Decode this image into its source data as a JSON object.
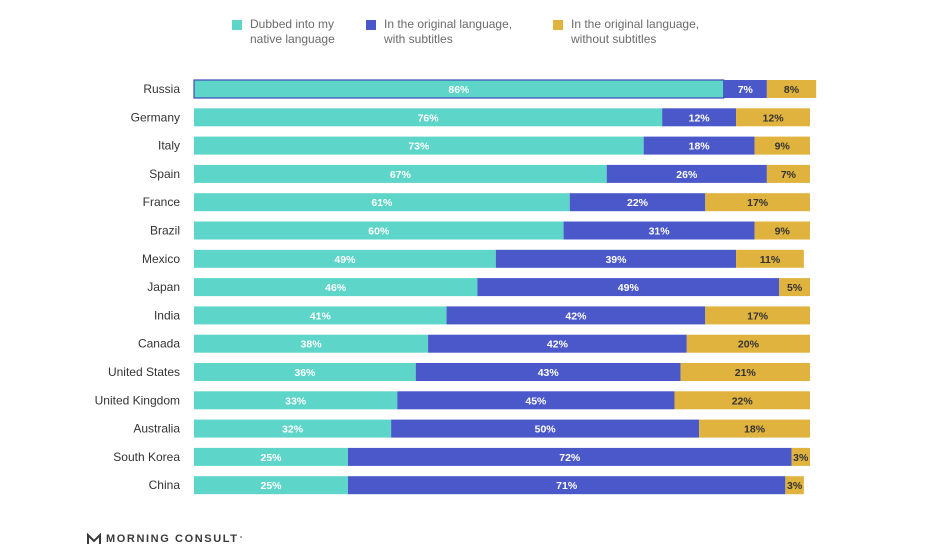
{
  "legend": {
    "dubbed_line1": "Dubbed into my",
    "dubbed_line2": "native language",
    "subtitles_line1": "In the original language,",
    "subtitles_line2": "with subtitles",
    "nosubs_line1": "In the original language,",
    "nosubs_line2": "without subtitles"
  },
  "brand": {
    "name": "MORNING CONSULT",
    "tm": "°"
  },
  "colors": {
    "dubbed": "#5dd5c8",
    "subtitles": "#4a58c9",
    "nosubs": "#e0b23e",
    "label": "#ffffff",
    "label_dark": "#333333"
  },
  "chart_data": {
    "type": "bar",
    "orientation": "horizontal",
    "stacked": true,
    "categories": [
      "Russia",
      "Germany",
      "Italy",
      "Spain",
      "France",
      "Brazil",
      "Mexico",
      "Japan",
      "India",
      "Canada",
      "United States",
      "United Kingdom",
      "Australia",
      "South Korea",
      "China"
    ],
    "series": [
      {
        "name": "Dubbed into my native language",
        "values": [
          86,
          76,
          73,
          67,
          61,
          60,
          49,
          46,
          41,
          38,
          36,
          33,
          32,
          25,
          25
        ]
      },
      {
        "name": "In the original language, with subtitles",
        "values": [
          7,
          12,
          18,
          26,
          22,
          31,
          39,
          49,
          42,
          42,
          43,
          45,
          50,
          72,
          71
        ]
      },
      {
        "name": "In the original language, without subtitles",
        "values": [
          8,
          12,
          9,
          7,
          17,
          9,
          11,
          5,
          17,
          20,
          21,
          22,
          18,
          3,
          3
        ]
      }
    ],
    "value_labels": [
      [
        "86%",
        "7%",
        "8%"
      ],
      [
        "76%",
        "12%",
        "12%"
      ],
      [
        "73%",
        "18%",
        "9%"
      ],
      [
        "67%",
        "26%",
        "7%"
      ],
      [
        "61%",
        "22%",
        "17%"
      ],
      [
        "60%",
        "31%",
        "9%"
      ],
      [
        "49%",
        "39%",
        "11%"
      ],
      [
        "46%",
        "49%",
        "5%"
      ],
      [
        "41%",
        "42%",
        "17%"
      ],
      [
        "38%",
        "42%",
        "20%"
      ],
      [
        "36%",
        "43%",
        "21%"
      ],
      [
        "33%",
        "45%",
        "22%"
      ],
      [
        "32%",
        "50%",
        "18%"
      ],
      [
        "25%",
        "72%",
        "3%"
      ],
      [
        "25%",
        "71%",
        "3%"
      ]
    ],
    "legend_position": "top",
    "grid": false
  }
}
